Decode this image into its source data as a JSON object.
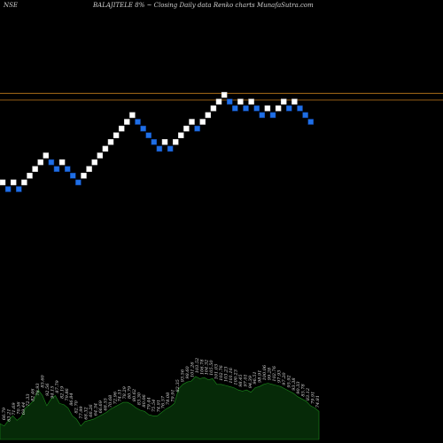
{
  "header": {
    "exchange": "NSE",
    "title": "BALAJITELE 8% ~ Closing Daily data Renko charts MunafaSutra.com"
  },
  "colors": {
    "background": "#000000",
    "up_brick": "#ffffff",
    "down_brick": "#1f6fe6",
    "upper_line": "#c07a1a",
    "lower_line": "#a86818",
    "volume_fill": "#062a08",
    "volume_line": "#1b8a1b",
    "label": "#dcdcdc"
  },
  "chart_data": [
    {
      "type": "renko",
      "bricks": [
        {
          "dir": "up",
          "level": 1
        },
        {
          "dir": "down",
          "level": 0
        },
        {
          "dir": "up",
          "level": 1
        },
        {
          "dir": "down",
          "level": 0
        },
        {
          "dir": "up",
          "level": 1
        },
        {
          "dir": "up",
          "level": 2
        },
        {
          "dir": "up",
          "level": 3
        },
        {
          "dir": "up",
          "level": 4
        },
        {
          "dir": "up",
          "level": 5
        },
        {
          "dir": "down",
          "level": 4
        },
        {
          "dir": "down",
          "level": 3
        },
        {
          "dir": "up",
          "level": 4
        },
        {
          "dir": "down",
          "level": 3
        },
        {
          "dir": "down",
          "level": 2
        },
        {
          "dir": "down",
          "level": 1
        },
        {
          "dir": "up",
          "level": 2
        },
        {
          "dir": "up",
          "level": 3
        },
        {
          "dir": "up",
          "level": 4
        },
        {
          "dir": "up",
          "level": 5
        },
        {
          "dir": "up",
          "level": 6
        },
        {
          "dir": "up",
          "level": 7
        },
        {
          "dir": "up",
          "level": 8
        },
        {
          "dir": "up",
          "level": 9
        },
        {
          "dir": "up",
          "level": 10
        },
        {
          "dir": "up",
          "level": 11
        },
        {
          "dir": "down",
          "level": 10
        },
        {
          "dir": "down",
          "level": 9
        },
        {
          "dir": "down",
          "level": 8
        },
        {
          "dir": "down",
          "level": 7
        },
        {
          "dir": "down",
          "level": 6
        },
        {
          "dir": "up",
          "level": 7
        },
        {
          "dir": "down",
          "level": 6
        },
        {
          "dir": "up",
          "level": 7
        },
        {
          "dir": "up",
          "level": 8
        },
        {
          "dir": "up",
          "level": 9
        },
        {
          "dir": "up",
          "level": 10
        },
        {
          "dir": "down",
          "level": 9
        },
        {
          "dir": "up",
          "level": 10
        },
        {
          "dir": "up",
          "level": 11
        },
        {
          "dir": "up",
          "level": 12
        },
        {
          "dir": "up",
          "level": 13
        },
        {
          "dir": "up",
          "level": 14
        },
        {
          "dir": "down",
          "level": 13
        },
        {
          "dir": "down",
          "level": 12
        },
        {
          "dir": "up",
          "level": 13
        },
        {
          "dir": "down",
          "level": 12
        },
        {
          "dir": "up",
          "level": 13
        },
        {
          "dir": "down",
          "level": 12
        },
        {
          "dir": "down",
          "level": 11
        },
        {
          "dir": "up",
          "level": 12
        },
        {
          "dir": "down",
          "level": 11
        },
        {
          "dir": "up",
          "level": 12
        },
        {
          "dir": "up",
          "level": 13
        },
        {
          "dir": "down",
          "level": 12
        },
        {
          "dir": "up",
          "level": 13
        },
        {
          "dir": "down",
          "level": 12
        },
        {
          "dir": "down",
          "level": 11
        },
        {
          "dir": "down",
          "level": 10
        }
      ],
      "reference_levels": [
        14.5,
        13.5
      ]
    },
    {
      "type": "area",
      "volume": [
        64,
        62,
        67,
        71,
        67,
        70,
        78,
        81,
        85,
        94,
        89,
        80,
        86,
        89,
        82,
        81,
        78,
        71,
        68,
        62,
        66,
        67,
        68,
        70,
        72,
        74,
        77,
        79,
        81,
        83,
        83,
        81,
        78,
        76,
        75,
        72,
        71,
        71,
        74,
        77,
        79,
        82,
        95,
        99,
        101,
        102,
        106,
        104,
        105,
        103,
        104,
        99,
        99,
        98,
        97,
        96,
        94,
        93,
        94,
        92,
        96,
        97,
        99,
        100,
        99,
        98,
        97,
        95,
        93,
        91,
        88,
        86,
        84,
        80,
        78,
        75
      ],
      "volume_labels": [
        "66.79",
        "63.21",
        "71.69",
        "70.56",
        "69.44",
        "72.33",
        "82.46",
        "78.93",
        "85.60",
        "92.56",
        "94.15",
        "87.79",
        "82.19",
        "79.86",
        "86.84",
        "82.70",
        "77.99",
        "68.32",
        "66.26",
        "64.34",
        "66.69",
        "68.55",
        "70.68",
        "72.96",
        "74.51",
        "78.29",
        "80.79",
        "80.62",
        "83.30",
        "80.06",
        "79.44",
        "75.54",
        "74.91",
        "76.57",
        "78.08",
        "79.91",
        "82.35",
        "93.56",
        "98.60",
        "101.26",
        "103.52",
        "106.78",
        "104.32",
        "105.50",
        "101.03",
        "102.76",
        "103.23",
        "101.16",
        "100.23",
        "98.45",
        "97.01",
        "94.39",
        "96.51",
        "98.91",
        "100.06",
        "99.28",
        "102.76",
        "97.93",
        "97.20",
        "95.92",
        "93.38",
        "90.33",
        "85.78",
        "83.12",
        "79.91",
        "74.81"
      ]
    }
  ]
}
